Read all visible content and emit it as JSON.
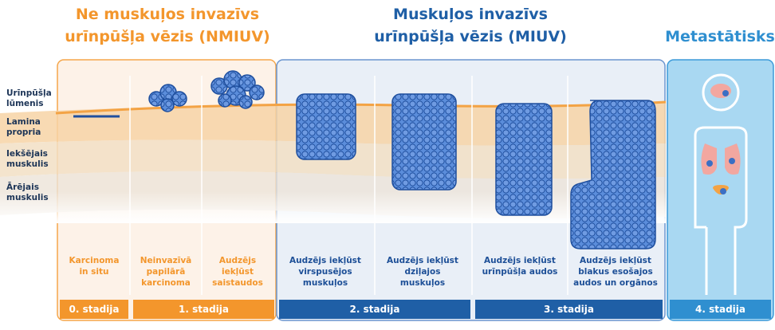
{
  "headers": {
    "nmiuv": [
      "Ne muskuļos invazīvs",
      "urīnpūšļa vēzis (NMIUV)"
    ],
    "miuv": [
      "Muskuļos invazīvs",
      "urīnpūšļa vēzis (MIUV)"
    ],
    "metastatic": "Metastātisks"
  },
  "layers": [
    [
      "Urīnpūšļa",
      "lūmenis"
    ],
    [
      "Lamina",
      "propria"
    ],
    [
      "Iekšējais",
      "muskulis"
    ],
    [
      "Ārējais",
      "muskulis"
    ]
  ],
  "captions": [
    [
      "Karcinoma",
      "in situ"
    ],
    [
      "Neinvazīvā",
      "papilārā",
      "karcinoma"
    ],
    [
      "Audzējs",
      "iekļūst",
      "saistaudos"
    ],
    [
      "Audzējs iekļūst",
      "virspusējos",
      "muskuļos"
    ],
    [
      "Audzējs iekļūst",
      "dziļajos",
      "muskuļos"
    ],
    [
      "Audzējs iekļūst",
      "urīnpūšļa audos"
    ],
    [
      "Audzējs iekļūst",
      "blakus esošajos",
      "audos un orgānos"
    ]
  ],
  "stages": [
    "0. stadija",
    "1. stadija",
    "2. stadija",
    "3. stadija",
    "4. stadija"
  ]
}
